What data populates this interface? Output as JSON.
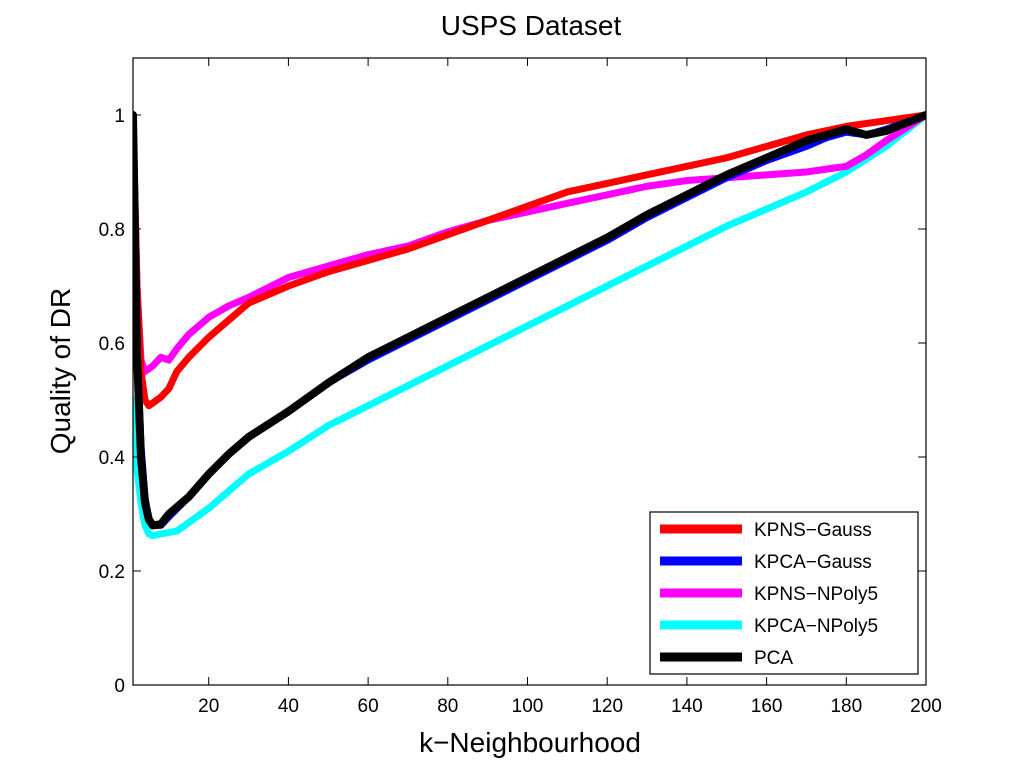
{
  "chart_data": {
    "type": "line",
    "title": "USPS Dataset",
    "xlabel": "k−Neighbourhood",
    "ylabel": "Quality of DR",
    "xlim": [
      1,
      200
    ],
    "ylim": [
      0,
      1.1
    ],
    "xticks": [
      20,
      40,
      60,
      80,
      100,
      120,
      140,
      160,
      180,
      200
    ],
    "yticks": [
      0,
      0.2,
      0.4,
      0.6,
      0.8,
      1
    ],
    "ytick_labels": [
      "0",
      "0.2",
      "0.4",
      "0.6",
      "0.8",
      "1"
    ],
    "grid": false,
    "legend_position": "bottom-right",
    "series": [
      {
        "name": "KPNS−Gauss",
        "color": "#ff0000",
        "points": [
          [
            1,
            1.0
          ],
          [
            2,
            0.7
          ],
          [
            3,
            0.55
          ],
          [
            4,
            0.5
          ],
          [
            5,
            0.49
          ],
          [
            6,
            0.495
          ],
          [
            8,
            0.505
          ],
          [
            10,
            0.52
          ],
          [
            12,
            0.55
          ],
          [
            15,
            0.575
          ],
          [
            20,
            0.61
          ],
          [
            25,
            0.64
          ],
          [
            30,
            0.67
          ],
          [
            40,
            0.7
          ],
          [
            50,
            0.725
          ],
          [
            60,
            0.745
          ],
          [
            70,
            0.765
          ],
          [
            80,
            0.79
          ],
          [
            90,
            0.815
          ],
          [
            100,
            0.84
          ],
          [
            110,
            0.865
          ],
          [
            120,
            0.88
          ],
          [
            130,
            0.895
          ],
          [
            140,
            0.91
          ],
          [
            150,
            0.925
          ],
          [
            160,
            0.945
          ],
          [
            170,
            0.965
          ],
          [
            180,
            0.98
          ],
          [
            190,
            0.99
          ],
          [
            200,
            1.0
          ]
        ]
      },
      {
        "name": "KPCA−Gauss",
        "color": "#0000ff",
        "points": [
          [
            1,
            1.0
          ],
          [
            2,
            0.6
          ],
          [
            3,
            0.42
          ],
          [
            4,
            0.33
          ],
          [
            5,
            0.29
          ],
          [
            6,
            0.28
          ],
          [
            8,
            0.28
          ],
          [
            10,
            0.295
          ],
          [
            15,
            0.33
          ],
          [
            20,
            0.37
          ],
          [
            25,
            0.405
          ],
          [
            30,
            0.435
          ],
          [
            40,
            0.48
          ],
          [
            50,
            0.53
          ],
          [
            60,
            0.57
          ],
          [
            70,
            0.605
          ],
          [
            80,
            0.64
          ],
          [
            90,
            0.675
          ],
          [
            100,
            0.71
          ],
          [
            110,
            0.745
          ],
          [
            120,
            0.78
          ],
          [
            130,
            0.82
          ],
          [
            140,
            0.855
          ],
          [
            150,
            0.89
          ],
          [
            160,
            0.92
          ],
          [
            170,
            0.945
          ],
          [
            175,
            0.96
          ],
          [
            180,
            0.97
          ],
          [
            185,
            0.965
          ],
          [
            190,
            0.975
          ],
          [
            200,
            1.0
          ]
        ]
      },
      {
        "name": "KPNS−NPoly5",
        "color": "#ff00ff",
        "points": [
          [
            1,
            0.98
          ],
          [
            2,
            0.7
          ],
          [
            3,
            0.57
          ],
          [
            4,
            0.55
          ],
          [
            6,
            0.56
          ],
          [
            8,
            0.575
          ],
          [
            10,
            0.57
          ],
          [
            12,
            0.59
          ],
          [
            15,
            0.615
          ],
          [
            20,
            0.645
          ],
          [
            25,
            0.665
          ],
          [
            30,
            0.68
          ],
          [
            40,
            0.715
          ],
          [
            50,
            0.735
          ],
          [
            60,
            0.755
          ],
          [
            70,
            0.77
          ],
          [
            80,
            0.795
          ],
          [
            90,
            0.815
          ],
          [
            100,
            0.83
          ],
          [
            110,
            0.845
          ],
          [
            120,
            0.86
          ],
          [
            130,
            0.875
          ],
          [
            140,
            0.885
          ],
          [
            150,
            0.89
          ],
          [
            160,
            0.895
          ],
          [
            170,
            0.9
          ],
          [
            175,
            0.905
          ],
          [
            180,
            0.91
          ],
          [
            185,
            0.93
          ],
          [
            190,
            0.955
          ],
          [
            200,
            1.0
          ]
        ]
      },
      {
        "name": "KPCA−NPoly5",
        "color": "#00ffff",
        "points": [
          [
            1,
            0.5
          ],
          [
            2,
            0.38
          ],
          [
            3,
            0.32
          ],
          [
            4,
            0.28
          ],
          [
            5,
            0.265
          ],
          [
            6,
            0.262
          ],
          [
            8,
            0.265
          ],
          [
            12,
            0.27
          ],
          [
            15,
            0.285
          ],
          [
            20,
            0.31
          ],
          [
            25,
            0.34
          ],
          [
            30,
            0.37
          ],
          [
            40,
            0.41
          ],
          [
            50,
            0.455
          ],
          [
            60,
            0.49
          ],
          [
            70,
            0.525
          ],
          [
            80,
            0.56
          ],
          [
            90,
            0.595
          ],
          [
            100,
            0.63
          ],
          [
            110,
            0.665
          ],
          [
            120,
            0.7
          ],
          [
            130,
            0.735
          ],
          [
            140,
            0.77
          ],
          [
            150,
            0.805
          ],
          [
            160,
            0.835
          ],
          [
            170,
            0.865
          ],
          [
            180,
            0.9
          ],
          [
            190,
            0.945
          ],
          [
            200,
            1.0
          ]
        ]
      },
      {
        "name": "PCA",
        "color": "#000000",
        "points": [
          [
            1,
            1.0
          ],
          [
            2,
            0.58
          ],
          [
            3,
            0.4
          ],
          [
            4,
            0.32
          ],
          [
            5,
            0.29
          ],
          [
            6,
            0.28
          ],
          [
            8,
            0.282
          ],
          [
            10,
            0.3
          ],
          [
            15,
            0.33
          ],
          [
            20,
            0.37
          ],
          [
            25,
            0.405
          ],
          [
            30,
            0.435
          ],
          [
            40,
            0.48
          ],
          [
            50,
            0.53
          ],
          [
            60,
            0.575
          ],
          [
            70,
            0.61
          ],
          [
            80,
            0.645
          ],
          [
            90,
            0.68
          ],
          [
            100,
            0.715
          ],
          [
            110,
            0.75
          ],
          [
            120,
            0.785
          ],
          [
            130,
            0.825
          ],
          [
            140,
            0.86
          ],
          [
            150,
            0.895
          ],
          [
            160,
            0.925
          ],
          [
            170,
            0.955
          ],
          [
            175,
            0.965
          ],
          [
            180,
            0.975
          ],
          [
            185,
            0.965
          ],
          [
            190,
            0.972
          ],
          [
            200,
            1.0
          ]
        ]
      }
    ]
  }
}
